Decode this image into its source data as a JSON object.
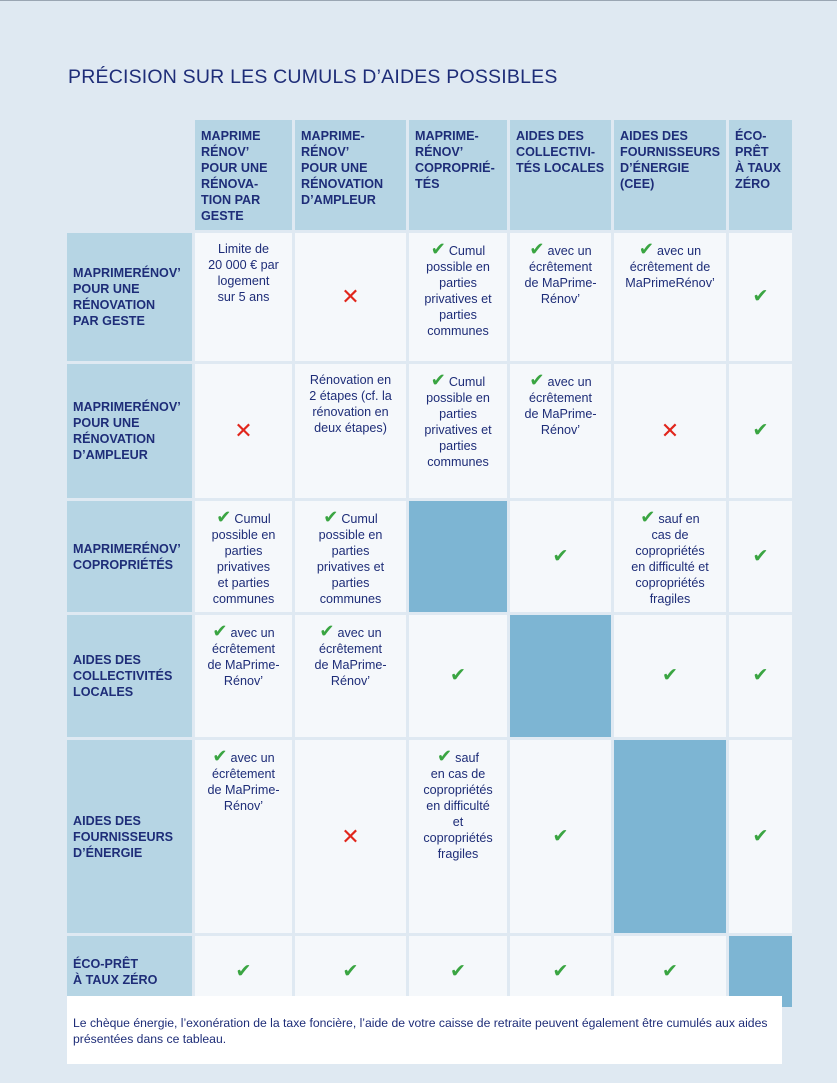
{
  "title": "PRÉCISION SUR LES CUMULS D’AIDES POSSIBLES",
  "columns": [
    "MAPRIME\nRÉNOV’\nPOUR UNE\nRÉNOVA-\nTION PAR\nGESTE",
    "MAPRIME-\nRÉNOV’\nPOUR UNE\nRÉNOVATION\nD’AMPLEUR",
    "MAPRIME-\nRÉNOV’\nCOPROPRIÉ-\nTÉS",
    "AIDES DES\nCOLLECTIVI-\nTÉS LOCALES",
    "AIDES DES\nFOURNISSEURS\nD’ÉNERGIE\n(CEE)",
    "ÉCO-\nPRÊT\nÀ TAUX\nZÉRO"
  ],
  "rows": [
    "MAPRIMERÉNOV’\nPOUR UNE\nRÉNOVATION\nPAR GESTE",
    "MAPRIMERÉNOV’\nPOUR UNE\nRÉNOVATION\nD’AMPLEUR",
    "MAPRIMERÉNOV’\nCOPROPRIÉTÉS",
    "AIDES DES\nCOLLECTIVITÉS\nLOCALES",
    "AIDES DES\nFOURNISSEURS\nD’ÉNERGIE",
    "ÉCO-PRÊT\nÀ TAUX ZÉRO"
  ],
  "symbols": {
    "check": "✔",
    "cross": "✕"
  },
  "cells": {
    "r1c1": "Limite de\n20 000 € par\nlogement\nsur 5 ans",
    "r1c3": "Cumul\npossible en\nparties\nprivatives et\nparties\ncommunes",
    "r1c4": "avec un\nécrêtement\nde MaPrime-\nRénov’",
    "r1c5": "avec un\nécrêtement de\nMaPrimeRénov’",
    "r2c2": "Rénovation en\n2 étapes (cf. la\nrénovation en\ndeux étapes)",
    "r2c3": "Cumul\npossible en\nparties\nprivatives et\nparties\ncommunes",
    "r2c4": "avec un\nécrêtement\nde MaPrime-\nRénov’",
    "r3c1": "Cumul\npossible en\nparties\nprivatives\net parties\ncommunes",
    "r3c2": "Cumul\npossible en\nparties\nprivatives et\nparties\ncommunes",
    "r3c5": "sauf en\ncas de\ncopropriétés\nen difficulté et\ncopropriétés\nfragiles",
    "r4c1": "avec un\nécrêtement\nde MaPrime-\nRénov’",
    "r4c2": "avec un\nécrêtement\nde MaPrime-\nRénov’",
    "r5c1": "avec un\nécrêtement\nde MaPrime-\nRénov’",
    "r5c3": "sauf\nen cas de\ncopropriétés\nen difficulté\net\ncopropriétés\nfragiles"
  },
  "footnote": "Le chèque énergie, l’exonération de la taxe foncière, l’aide de votre caisse de retraite peuvent également être cumulés aux aides présentées dans ce tableau."
}
